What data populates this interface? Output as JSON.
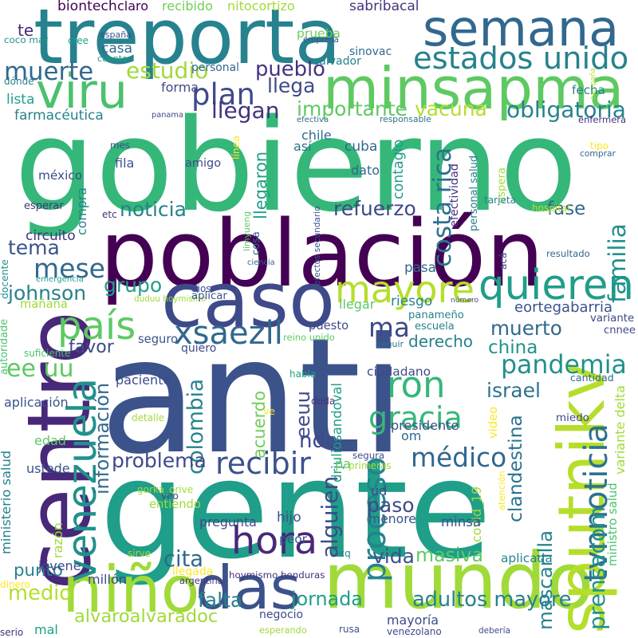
{
  "palette": [
    "#440154",
    "#46327e",
    "#365c8d",
    "#277f8e",
    "#1fa187",
    "#4ac16d",
    "#a0da39",
    "#fde725"
  ],
  "words": [
    {
      "text": "anti",
      "color": "#3b528b"
    },
    {
      "text": "gobierno",
      "color": "#35b779"
    },
    {
      "text": "gente",
      "color": "#1f9e89"
    },
    {
      "text": "población",
      "color": "#440154"
    },
    {
      "text": "treporta",
      "color": "#26828e"
    },
    {
      "text": "mundo",
      "color": "#a0da39"
    },
    {
      "text": "caso",
      "color": "#3e4a89"
    },
    {
      "text": "centro",
      "color": "#482878"
    },
    {
      "text": "minsapma",
      "color": "#5ec962"
    },
    {
      "text": "semana",
      "color": "#31688e"
    },
    {
      "text": "sputnikv",
      "color": "#b5de2b"
    },
    {
      "text": "das",
      "color": "#3b528b"
    },
    {
      "text": "niño",
      "color": "#a0da39"
    },
    {
      "text": "viru",
      "color": "#4ac16d"
    },
    {
      "text": "venezuela",
      "color": "#21918c"
    },
    {
      "text": "mayore",
      "color": "#b5de2b"
    },
    {
      "text": "quieren",
      "color": "#1f9e89"
    },
    {
      "text": "ron",
      "color": "#35b779"
    },
    {
      "text": "país",
      "color": "#5ec962"
    },
    {
      "text": "proceso",
      "color": "#26828e"
    },
    {
      "text": "hora",
      "color": "#482878"
    },
    {
      "text": "ma",
      "color": "#3e4a89"
    },
    {
      "text": "estados unido",
      "color": "#26828e"
    },
    {
      "text": "xsaezll",
      "color": "#31688e"
    },
    {
      "text": "recibir",
      "color": "#3b528b"
    },
    {
      "text": "médico",
      "color": "#31688e"
    },
    {
      "text": "pandemia",
      "color": "#21918c"
    },
    {
      "text": "gracia",
      "color": "#35b779"
    },
    {
      "text": "tvnnoticia",
      "color": "#2c728e"
    },
    {
      "text": "plan",
      "color": "#3e4a89"
    },
    {
      "text": "mese",
      "color": "#31688e"
    },
    {
      "text": "muerte",
      "color": "#31688e"
    },
    {
      "text": "estudio",
      "color": "#a0da39"
    },
    {
      "text": "pueblo",
      "color": "#46327e"
    },
    {
      "text": "llega",
      "color": "#3e4a89"
    },
    {
      "text": "llegan",
      "color": "#46327e"
    },
    {
      "text": "importante",
      "color": "#5ec962"
    },
    {
      "text": "vacuna",
      "color": "#b5de2b"
    },
    {
      "text": "obligatoria",
      "color": "#26828e"
    },
    {
      "text": "costa rica",
      "color": "#2c728e"
    },
    {
      "text": "noticia",
      "color": "#26828e"
    },
    {
      "text": "refuerzo",
      "color": "#3e4a89"
    },
    {
      "text": "fase",
      "color": "#31688e"
    },
    {
      "text": "familia",
      "color": "#21918c"
    },
    {
      "text": "tema",
      "color": "#3b528b"
    },
    {
      "text": "grupo",
      "color": "#1f9e89"
    },
    {
      "text": "johnson",
      "color": "#26828e"
    },
    {
      "text": "muerto",
      "color": "#31688e"
    },
    {
      "text": "china",
      "color": "#21918c"
    },
    {
      "text": "derecho",
      "color": "#26828e"
    },
    {
      "text": "ee uu",
      "color": "#5ec962"
    },
    {
      "text": "favor",
      "color": "#3e4a89"
    },
    {
      "text": "israel",
      "color": "#2c728e"
    },
    {
      "text": "información",
      "color": "#31688e"
    },
    {
      "text": "colombia",
      "color": "#26828e"
    },
    {
      "text": "acuerdo",
      "color": "#6ece58"
    },
    {
      "text": "eeuu",
      "color": "#3e4a89"
    },
    {
      "text": "ndo",
      "color": "#3e4a89"
    },
    {
      "text": "clandestina",
      "color": "#2c728e"
    },
    {
      "text": "prensacom",
      "color": "#21918c"
    },
    {
      "text": "problema",
      "color": "#3e4a89"
    },
    {
      "text": "alguien",
      "color": "#3e4a89"
    },
    {
      "text": "paso",
      "color": "#3e4a89"
    },
    {
      "text": "cita",
      "color": "#31688e"
    },
    {
      "text": "vida",
      "color": "#3b528b"
    },
    {
      "text": "masiva",
      "color": "#5ec962"
    },
    {
      "text": "punto",
      "color": "#26828e"
    },
    {
      "text": "medio",
      "color": "#b5de2b"
    },
    {
      "text": "falta",
      "color": "#26828e"
    },
    {
      "text": "alvaroalvaradoc",
      "color": "#a0da39"
    },
    {
      "text": "jornada",
      "color": "#1f9e89"
    },
    {
      "text": "adultos mayore",
      "color": "#26828e"
    },
    {
      "text": "mascarilla",
      "color": "#26828e"
    },
    {
      "text": "biontech",
      "color": "#440154"
    },
    {
      "text": "claro",
      "color": "#440154"
    },
    {
      "text": "recibido",
      "color": "#6ece58"
    },
    {
      "text": "nitocortizo",
      "color": "#a0da39"
    },
    {
      "text": "sabribacal",
      "color": "#46327e"
    },
    {
      "text": "prueba",
      "color": "#6ece58"
    },
    {
      "text": "empresa",
      "color": "#3b528b"
    },
    {
      "text": "sinovac",
      "color": "#31688e"
    },
    {
      "text": "salvador",
      "color": "#26828e"
    },
    {
      "text": "te",
      "color": "#482878"
    },
    {
      "text": "coco mar",
      "color": "#21918c"
    },
    {
      "text": "cree",
      "color": "#1f9e89"
    },
    {
      "text": "españa",
      "color": "#3b528b"
    },
    {
      "text": "cuento",
      "color": "#1fa187"
    },
    {
      "text": "casa",
      "color": "#31688e"
    },
    {
      "text": "personal",
      "color": "#31688e"
    },
    {
      "text": "dónde",
      "color": "#277f8e"
    },
    {
      "text": "campaña",
      "color": "#b5de2b"
    },
    {
      "text": "fecha",
      "color": "#26828e"
    },
    {
      "text": "lista",
      "color": "#1f9e89"
    },
    {
      "text": "forma",
      "color": "#3e4a89"
    },
    {
      "text": "farmacéutica",
      "color": "#26828e"
    },
    {
      "text": "panama",
      "color": "#3e4a89"
    },
    {
      "text": "efectiva",
      "color": "#31688e"
    },
    {
      "text": "responsable",
      "color": "#2c728e"
    },
    {
      "text": "enfermera",
      "color": "#46327e"
    },
    {
      "text": "chile",
      "color": "#31688e"
    },
    {
      "text": "así",
      "color": "#2c728e"
    },
    {
      "text": "cuba",
      "color": "#31688e"
    },
    {
      "text": "contagio",
      "color": "#1f9e89"
    },
    {
      "text": "personal salud",
      "color": "#277f8e"
    },
    {
      "text": "efectividad",
      "color": "#46327e"
    },
    {
      "text": "tipo",
      "color": "#fde725"
    },
    {
      "text": "comprar",
      "color": "#31688e"
    },
    {
      "text": "línea",
      "color": "#fde725"
    },
    {
      "text": "mes",
      "color": "#3e4a89"
    },
    {
      "text": "fila",
      "color": "#3b528b"
    },
    {
      "text": "amigo",
      "color": "#3e4a89"
    },
    {
      "text": "llegaron",
      "color": "#1fa187"
    },
    {
      "text": "dato",
      "color": "#31688e"
    },
    {
      "text": "espera",
      "color": "#a0da39"
    },
    {
      "text": "tarjeta",
      "color": "#26828e"
    },
    {
      "text": "méxico",
      "color": "#3e4a89"
    },
    {
      "text": "esperar",
      "color": "#46327e"
    },
    {
      "text": "etc",
      "color": "#46327e"
    },
    {
      "text": "compra",
      "color": "#26828e"
    },
    {
      "text": "hospital",
      "color": "#b5de2b"
    },
    {
      "text": "efectos secundario",
      "color": "#3b528b"
    },
    {
      "text": "circuito",
      "color": "#46327e"
    },
    {
      "text": "limyueng",
      "color": "#5ec962"
    },
    {
      "text": "ciencia",
      "color": "#31688e"
    },
    {
      "text": "cosa",
      "color": "#31688e"
    },
    {
      "text": "pasa",
      "color": "#31688e"
    },
    {
      "text": "acá",
      "color": "#3e4a89"
    },
    {
      "text": "resultado",
      "color": "#31688e"
    },
    {
      "text": "docente",
      "color": "#21918c"
    },
    {
      "text": "emergencia",
      "color": "#1fa187"
    },
    {
      "text": "dios",
      "color": "#3e4a89"
    },
    {
      "text": "duduu hoymismo",
      "color": "#a0da39"
    },
    {
      "text": "aplicar",
      "color": "#3b528b"
    },
    {
      "text": "número",
      "color": "#3e4a89"
    },
    {
      "text": "eortegabarria",
      "color": "#3b528b"
    },
    {
      "text": "mañana",
      "color": "#a0da39"
    },
    {
      "text": "riesgo",
      "color": "#26828e"
    },
    {
      "text": "llegar",
      "color": "#5ec962"
    },
    {
      "text": "panameño",
      "color": "#26828e"
    },
    {
      "text": "escuela",
      "color": "#26828e"
    },
    {
      "text": "puesto",
      "color": "#3e4a89"
    },
    {
      "text": "variante",
      "color": "#3e4a89"
    },
    {
      "text": "cnnee",
      "color": "#3e4a89"
    },
    {
      "text": "seguro",
      "color": "#3b528b"
    },
    {
      "text": "quiero",
      "color": "#3e4a89"
    },
    {
      "text": "reino unido",
      "color": "#5ec962"
    },
    {
      "text": "seguir",
      "color": "#2c728e"
    },
    {
      "text": "autoridade",
      "color": "#4ac16d"
    },
    {
      "text": "suficiente",
      "color": "#4ac16d"
    },
    {
      "text": "paciente",
      "color": "#3e4a89"
    },
    {
      "text": "ciudadano",
      "color": "#3e4a89"
    },
    {
      "text": "habla",
      "color": "#1fa187"
    },
    {
      "text": "cantidad",
      "color": "#31688e"
    },
    {
      "text": "variante delta",
      "color": "#a0da39"
    },
    {
      "text": "aplicación",
      "color": "#3b528b"
    },
    {
      "text": "duda",
      "color": "#46327e"
    },
    {
      "text": "drjuliosandoval",
      "color": "#1f9e89"
    },
    {
      "text": "ve",
      "color": "#fde725"
    },
    {
      "text": "detalle",
      "color": "#a0da39"
    },
    {
      "text": "video",
      "color": "#fde725"
    },
    {
      "text": "presidente",
      "color": "#3b528b"
    },
    {
      "text": "miedo",
      "color": "#3e4a89"
    },
    {
      "text": "edad",
      "color": "#5ec962"
    },
    {
      "text": "om",
      "color": "#31688e"
    },
    {
      "text": "ustede",
      "color": "#3b528b"
    },
    {
      "text": "pa",
      "color": "#5ec962"
    },
    {
      "text": "segura",
      "color": "#3e4a89"
    },
    {
      "text": "primeras",
      "color": "#a0da39"
    },
    {
      "text": "gorka_orive",
      "color": "#a0da39"
    },
    {
      "text": "ud",
      "color": "#3e4a89"
    },
    {
      "text": "atención",
      "color": "#fde725"
    },
    {
      "text": "ministerio salud",
      "color": "#26828e"
    },
    {
      "text": "veo",
      "color": "#3e4a89"
    },
    {
      "text": "menore",
      "color": "#3b528b"
    },
    {
      "text": "covid_19",
      "color": "#a0da39"
    },
    {
      "text": "minsa",
      "color": "#3b528b"
    },
    {
      "text": "ministro salud",
      "color": "#4ac16d"
    },
    {
      "text": "entiendo",
      "color": "#a0da39"
    },
    {
      "text": "pregunta",
      "color": "#3e4a89"
    },
    {
      "text": "hijo",
      "color": "#3b528b"
    },
    {
      "text": "razón",
      "color": "#a0da39"
    },
    {
      "text": "peor",
      "color": "#3b528b"
    },
    {
      "text": "sirve",
      "color": "#a0da39"
    },
    {
      "text": "xq",
      "color": "#26828e"
    },
    {
      "text": "jóvene",
      "color": "#3e4a89"
    },
    {
      "text": "aplicada",
      "color": "#26828e"
    },
    {
      "text": "millón",
      "color": "#3e4a89"
    },
    {
      "text": "llegada",
      "color": "#fde725"
    },
    {
      "text": "hoymismo honduras",
      "color": "#46327e"
    },
    {
      "text": "dinero",
      "color": "#fde725"
    },
    {
      "text": "argentina",
      "color": "#46327e"
    },
    {
      "text": "negocio",
      "color": "#3e4a89"
    },
    {
      "text": "mayoría",
      "color": "#3e4a89"
    },
    {
      "text": "serio",
      "color": "#46327e"
    },
    {
      "text": "mal",
      "color": "#1f9e89"
    },
    {
      "text": "esperando",
      "color": "#a0da39"
    },
    {
      "text": "rusa",
      "color": "#3b528b"
    },
    {
      "text": "venezolano",
      "color": "#3e4a89"
    },
    {
      "text": "debería",
      "color": "#3e4a89"
    }
  ]
}
